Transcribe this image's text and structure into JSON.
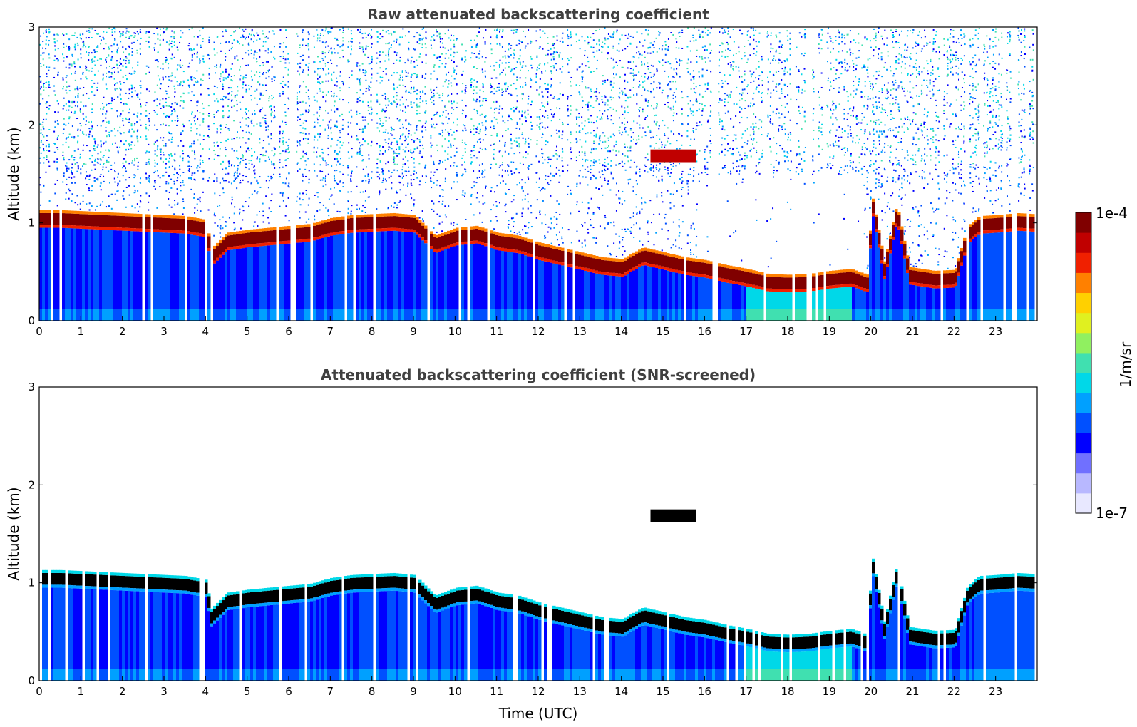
{
  "colors": {
    "colormap": [
      "#e8e8ff",
      "#b8b8ff",
      "#7070ff",
      "#0000ff",
      "#0050ff",
      "#00a0ff",
      "#00d8e8",
      "#40e0b0",
      "#90f060",
      "#e0f020",
      "#ffd000",
      "#ff8000",
      "#f02000",
      "#c00000",
      "#800000"
    ],
    "clip_color": "#000000",
    "frame": "#000000"
  },
  "chart_data": [
    {
      "type": "heatmap",
      "title": "Raw attenuated backscattering coefficient",
      "xlabel": "",
      "ylabel": "Altitude (km)",
      "xlim": [
        0,
        24
      ],
      "ylim": [
        0,
        3
      ],
      "xticks": [
        0,
        1,
        2,
        3,
        4,
        5,
        6,
        7,
        8,
        9,
        10,
        11,
        12,
        13,
        14,
        15,
        16,
        17,
        18,
        19,
        20,
        21,
        22,
        23
      ],
      "yticks": [
        0,
        1,
        2,
        3
      ],
      "screened": false,
      "cloud_base_km": {
        "time": [
          0,
          0.5,
          1,
          1.5,
          2,
          2.5,
          3,
          3.5,
          4,
          4.1,
          4.5,
          5,
          5.5,
          6,
          6.5,
          7,
          7.5,
          8,
          8.5,
          9,
          9.5,
          10,
          10.5,
          11,
          11.5,
          12,
          12.5,
          13,
          13.5,
          14,
          14.5,
          15,
          15.5,
          16,
          16.5,
          17,
          17.5,
          18,
          18.5,
          19,
          19.5,
          19.9,
          20,
          20.3,
          20.6,
          20.9,
          21.2,
          21.5,
          22,
          22.3,
          22.6,
          23,
          23.5,
          23.9
        ],
        "altitude": [
          0.98,
          0.98,
          0.97,
          0.96,
          0.95,
          0.94,
          0.93,
          0.92,
          0.88,
          0.58,
          0.75,
          0.78,
          0.8,
          0.82,
          0.84,
          0.9,
          0.93,
          0.94,
          0.95,
          0.93,
          0.72,
          0.8,
          0.82,
          0.75,
          0.72,
          0.65,
          0.6,
          0.55,
          0.5,
          0.48,
          0.6,
          0.55,
          0.5,
          0.47,
          0.42,
          0.38,
          0.33,
          0.32,
          0.33,
          0.36,
          0.38,
          0.32,
          1.15,
          0.45,
          1.05,
          0.4,
          0.38,
          0.36,
          0.37,
          0.82,
          0.92,
          0.93,
          0.95,
          0.94
        ]
      },
      "elevated_layer": {
        "time_start": 14.7,
        "time_end": 15.8,
        "altitude_km": [
          1.62,
          1.75
        ]
      },
      "colorbar": {
        "label": "1/m/sr",
        "max_label": "1e-4",
        "min_label": "1e-7"
      }
    },
    {
      "type": "heatmap",
      "title": "Attenuated backscattering coefficient (SNR-screened)",
      "xlabel": "Time (UTC)",
      "ylabel": "Altitude (km)",
      "xlim": [
        0,
        24
      ],
      "ylim": [
        0,
        3
      ],
      "xticks": [
        0,
        1,
        2,
        3,
        4,
        5,
        6,
        7,
        8,
        9,
        10,
        11,
        12,
        13,
        14,
        15,
        16,
        17,
        18,
        19,
        20,
        21,
        22,
        23
      ],
      "yticks": [
        0,
        1,
        2,
        3
      ],
      "screened": true
    }
  ]
}
